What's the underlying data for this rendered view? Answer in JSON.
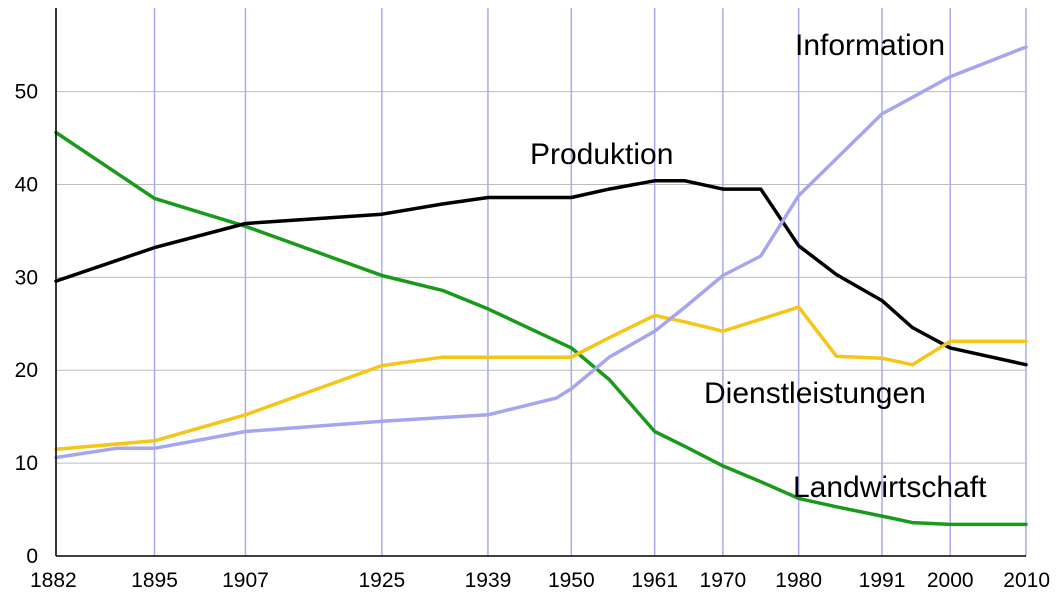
{
  "chart_data": {
    "type": "line",
    "x_ticks": [
      "1882",
      "1895",
      "1907",
      "1925",
      "1939",
      "1950",
      "1961",
      "1970",
      "1980",
      "1991",
      "2000",
      "2010"
    ],
    "y_ticks": [
      "0",
      "10",
      "20",
      "30",
      "40",
      "50"
    ],
    "xlim": [
      1882,
      2010
    ],
    "ylim": [
      0,
      59
    ],
    "grid": "on",
    "colors": {
      "grid_vertical": "#aaaaee",
      "grid_horizontal": "#bdbdbd"
    },
    "series": [
      {
        "name": "Landwirtschaft",
        "color": "#1a9a1a",
        "points": [
          [
            1882,
            45.6
          ],
          [
            1895,
            38.5
          ],
          [
            1907,
            35.5
          ],
          [
            1925,
            30.2
          ],
          [
            1933,
            28.6
          ],
          [
            1939,
            26.6
          ],
          [
            1950,
            22.4
          ],
          [
            1955,
            19
          ],
          [
            1961,
            13.4
          ],
          [
            1965,
            11.8
          ],
          [
            1970,
            9.7
          ],
          [
            1975,
            8
          ],
          [
            1980,
            6.2
          ],
          [
            1985,
            5.3
          ],
          [
            1991,
            4.3
          ],
          [
            1995,
            3.6
          ],
          [
            2000,
            3.4
          ],
          [
            2010,
            3.4
          ]
        ]
      },
      {
        "name": "Produktion",
        "color": "#000000",
        "points": [
          [
            1882,
            29.6
          ],
          [
            1895,
            33.2
          ],
          [
            1907,
            35.8
          ],
          [
            1925,
            36.8
          ],
          [
            1933,
            37.9
          ],
          [
            1939,
            38.6
          ],
          [
            1950,
            38.6
          ],
          [
            1955,
            39.5
          ],
          [
            1961,
            40.4
          ],
          [
            1965,
            40.4
          ],
          [
            1970,
            39.5
          ],
          [
            1975,
            39.5
          ],
          [
            1980,
            33.4
          ],
          [
            1985,
            30.3
          ],
          [
            1991,
            27.5
          ],
          [
            1995,
            24.6
          ],
          [
            2000,
            22.4
          ],
          [
            2010,
            20.6
          ]
        ]
      },
      {
        "name": "Dienstleistungen",
        "color": "#f5c518",
        "points": [
          [
            1882,
            11.5
          ],
          [
            1895,
            12.4
          ],
          [
            1907,
            15.2
          ],
          [
            1925,
            20.5
          ],
          [
            1933,
            21.4
          ],
          [
            1939,
            21.4
          ],
          [
            1950,
            21.4
          ],
          [
            1955,
            23.5
          ],
          [
            1961,
            25.9
          ],
          [
            1965,
            25.2
          ],
          [
            1970,
            24.2
          ],
          [
            1975,
            25.5
          ],
          [
            1980,
            26.8
          ],
          [
            1985,
            21.5
          ],
          [
            1991,
            21.3
          ],
          [
            1995,
            20.6
          ],
          [
            2000,
            23.1
          ],
          [
            2010,
            23.1
          ]
        ]
      },
      {
        "name": "Information",
        "color": "#a6a6f0",
        "points": [
          [
            1882,
            10.6
          ],
          [
            1890,
            11.6
          ],
          [
            1895,
            11.6
          ],
          [
            1907,
            13.4
          ],
          [
            1925,
            14.5
          ],
          [
            1939,
            15.2
          ],
          [
            1948,
            17
          ],
          [
            1950,
            18
          ],
          [
            1955,
            21.4
          ],
          [
            1961,
            24.2
          ],
          [
            1965,
            26.8
          ],
          [
            1970,
            30.2
          ],
          [
            1975,
            32.3
          ],
          [
            1980,
            38.8
          ],
          [
            1991,
            47.6
          ],
          [
            2000,
            51.6
          ],
          [
            2005,
            53.2
          ],
          [
            2010,
            54.8
          ]
        ]
      }
    ]
  }
}
